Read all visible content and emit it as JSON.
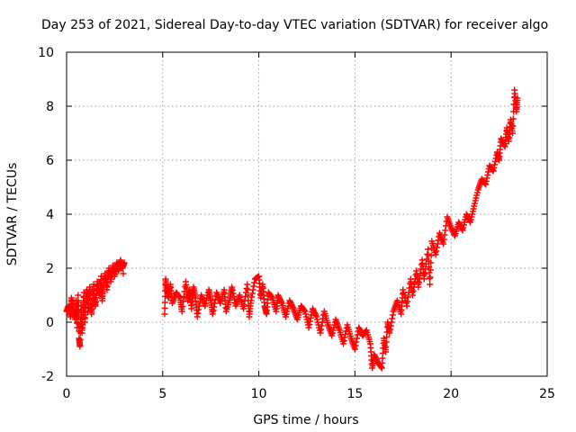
{
  "chart_data": {
    "type": "scatter",
    "title": "Day 253 of 2021, Sidereal Day-to-day VTEC variation (SDTVAR) for receiver algo",
    "xlabel": "GPS time / hours",
    "ylabel": "SDTVAR / TECUs",
    "xlim": [
      0,
      25
    ],
    "ylim": [
      -2,
      10
    ],
    "xticks": [
      "0",
      "5",
      "10",
      "15",
      "20",
      "25"
    ],
    "yticks": [
      "-2",
      "0",
      "2",
      "4",
      "6",
      "8",
      "10"
    ],
    "grid": true,
    "marker": "plus",
    "color": "#ff0000",
    "series": [
      {
        "name": "SDTVAR",
        "points": [
          [
            0.0,
            0.4
          ],
          [
            0.1,
            0.6
          ],
          [
            0.2,
            0.2
          ],
          [
            0.25,
            0.9
          ],
          [
            0.35,
            0.5
          ],
          [
            0.45,
            0.1
          ],
          [
            0.5,
            0.8
          ],
          [
            0.55,
            -0.2
          ],
          [
            0.6,
            1.0
          ],
          [
            0.65,
            -0.6
          ],
          [
            0.7,
            -0.9
          ],
          [
            0.75,
            0.6
          ],
          [
            0.8,
            -0.4
          ],
          [
            0.85,
            0.2
          ],
          [
            0.9,
            1.1
          ],
          [
            0.95,
            0.0
          ],
          [
            1.0,
            0.8
          ],
          [
            1.05,
            1.2
          ],
          [
            1.1,
            0.4
          ],
          [
            1.2,
            1.3
          ],
          [
            1.25,
            0.7
          ],
          [
            1.3,
            0.3
          ],
          [
            1.4,
            1.4
          ],
          [
            1.45,
            0.9
          ],
          [
            1.5,
            0.6
          ],
          [
            1.6,
            1.5
          ],
          [
            1.7,
            1.0
          ],
          [
            1.8,
            1.7
          ],
          [
            1.85,
            0.8
          ],
          [
            1.9,
            1.3
          ],
          [
            2.0,
            1.8
          ],
          [
            2.1,
            1.2
          ],
          [
            2.2,
            2.0
          ],
          [
            2.3,
            1.5
          ],
          [
            2.4,
            2.1
          ],
          [
            2.5,
            1.7
          ],
          [
            2.6,
            2.2
          ],
          [
            2.7,
            1.9
          ],
          [
            2.8,
            2.3
          ],
          [
            2.9,
            2.0
          ],
          [
            3.0,
            2.2
          ],
          [
            2.95,
            1.8
          ],
          [
            5.1,
            0.3
          ],
          [
            5.15,
            1.6
          ],
          [
            5.2,
            1.2
          ],
          [
            5.3,
            0.9
          ],
          [
            5.4,
            1.4
          ],
          [
            5.5,
            0.7
          ],
          [
            5.7,
            1.1
          ],
          [
            5.9,
            0.9
          ],
          [
            6.0,
            0.4
          ],
          [
            6.2,
            1.5
          ],
          [
            6.3,
            0.8
          ],
          [
            6.4,
            1.2
          ],
          [
            6.5,
            0.5
          ],
          [
            6.6,
            1.3
          ],
          [
            6.7,
            0.9
          ],
          [
            6.8,
            0.2
          ],
          [
            7.0,
            1.0
          ],
          [
            7.2,
            0.6
          ],
          [
            7.4,
            1.2
          ],
          [
            7.5,
            0.8
          ],
          [
            7.6,
            0.3
          ],
          [
            7.8,
            1.1
          ],
          [
            8.0,
            0.7
          ],
          [
            8.2,
            1.2
          ],
          [
            8.3,
            0.4
          ],
          [
            8.5,
            0.9
          ],
          [
            8.6,
            1.3
          ],
          [
            8.8,
            0.6
          ],
          [
            9.0,
            1.0
          ],
          [
            9.2,
            0.5
          ],
          [
            9.4,
            1.4
          ],
          [
            9.5,
            0.2
          ],
          [
            9.6,
            0.8
          ],
          [
            9.8,
            1.6
          ],
          [
            10.0,
            1.7
          ],
          [
            10.1,
            0.9
          ],
          [
            10.2,
            1.4
          ],
          [
            10.3,
            0.6
          ],
          [
            10.4,
            0.3
          ],
          [
            10.5,
            1.1
          ],
          [
            10.7,
            0.9
          ],
          [
            10.9,
            0.4
          ],
          [
            11.0,
            1.0
          ],
          [
            11.2,
            0.7
          ],
          [
            11.4,
            0.2
          ],
          [
            11.6,
            0.8
          ],
          [
            11.8,
            0.5
          ],
          [
            12.0,
            0.1
          ],
          [
            12.2,
            0.6
          ],
          [
            12.4,
            0.4
          ],
          [
            12.6,
            -0.2
          ],
          [
            12.8,
            0.5
          ],
          [
            13.0,
            0.2
          ],
          [
            13.2,
            -0.4
          ],
          [
            13.4,
            0.4
          ],
          [
            13.6,
            -0.1
          ],
          [
            13.8,
            -0.5
          ],
          [
            14.0,
            0.1
          ],
          [
            14.2,
            -0.3
          ],
          [
            14.4,
            -0.8
          ],
          [
            14.6,
            -0.1
          ],
          [
            14.8,
            -0.6
          ],
          [
            15.0,
            -1.0
          ],
          [
            15.2,
            -0.2
          ],
          [
            15.4,
            -0.5
          ],
          [
            15.6,
            -0.3
          ],
          [
            15.8,
            -0.8
          ],
          [
            15.9,
            -1.7
          ],
          [
            16.0,
            -1.2
          ],
          [
            16.2,
            -1.5
          ],
          [
            16.4,
            -1.7
          ],
          [
            16.5,
            -0.6
          ],
          [
            16.6,
            -1.1
          ],
          [
            16.7,
            0.0
          ],
          [
            16.8,
            -0.4
          ],
          [
            17.0,
            0.4
          ],
          [
            17.2,
            0.8
          ],
          [
            17.4,
            0.3
          ],
          [
            17.5,
            1.2
          ],
          [
            17.7,
            0.6
          ],
          [
            17.9,
            1.6
          ],
          [
            18.0,
            1.0
          ],
          [
            18.2,
            1.9
          ],
          [
            18.3,
            1.3
          ],
          [
            18.5,
            2.3
          ],
          [
            18.6,
            1.6
          ],
          [
            18.8,
            2.7
          ],
          [
            18.9,
            1.4
          ],
          [
            19.0,
            3.0
          ],
          [
            19.2,
            2.5
          ],
          [
            19.4,
            3.3
          ],
          [
            19.6,
            2.9
          ],
          [
            19.8,
            3.9
          ],
          [
            20.0,
            3.5
          ],
          [
            20.2,
            3.2
          ],
          [
            20.4,
            3.7
          ],
          [
            20.6,
            3.4
          ],
          [
            20.8,
            4.0
          ],
          [
            21.0,
            3.7
          ],
          [
            21.2,
            4.3
          ],
          [
            21.4,
            4.9
          ],
          [
            21.6,
            5.3
          ],
          [
            21.8,
            5.1
          ],
          [
            22.0,
            5.8
          ],
          [
            22.2,
            5.6
          ],
          [
            22.4,
            6.3
          ],
          [
            22.5,
            6.0
          ],
          [
            22.6,
            6.8
          ],
          [
            22.8,
            6.5
          ],
          [
            22.9,
            7.2
          ],
          [
            23.0,
            6.7
          ],
          [
            23.1,
            7.5
          ],
          [
            23.2,
            7.0
          ],
          [
            23.3,
            8.6
          ],
          [
            23.4,
            7.8
          ],
          [
            23.45,
            8.3
          ]
        ]
      }
    ]
  }
}
